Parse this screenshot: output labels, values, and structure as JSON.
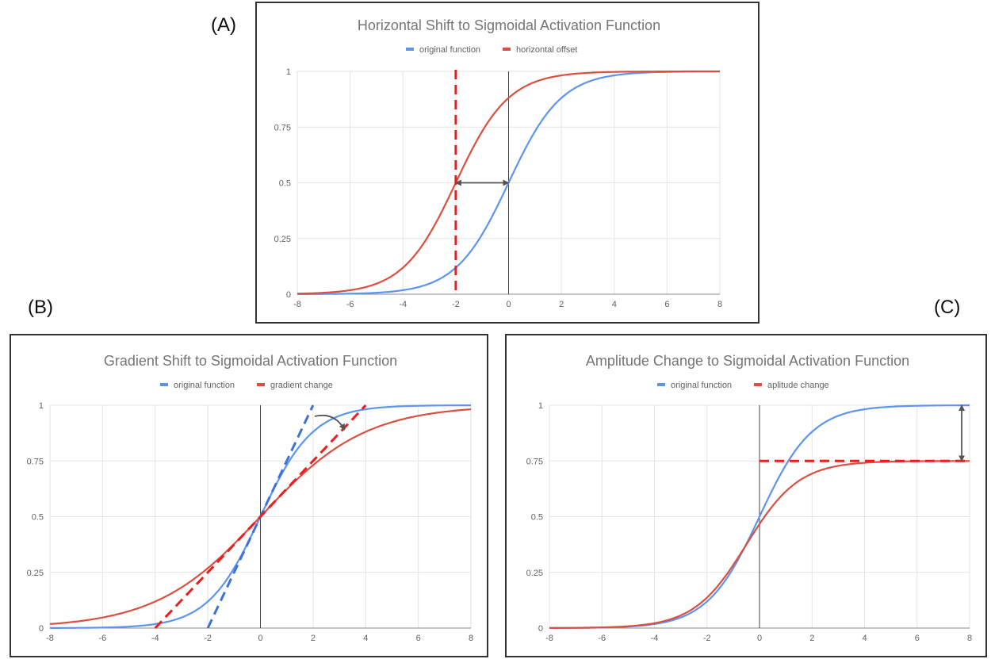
{
  "panel_labels": [
    "(A)",
    "(B)",
    "(C)"
  ],
  "colors": {
    "original": "#5b95f0",
    "modified": "#db4f3f",
    "dashed_red": "#ee1c1c",
    "dashed_blue": "#3d72d6",
    "arrow": "#555555",
    "grid": "#e3e3e3",
    "zero_axis": "#444444"
  },
  "chart_data": [
    {
      "type": "line",
      "title": "Horizontal Shift to Sigmoidal Activation Function",
      "xlim": [
        -8,
        8
      ],
      "ylim": [
        0,
        1
      ],
      "x_ticks": [
        "-8",
        "-6",
        "-4",
        "-2",
        "0",
        "2",
        "4",
        "6",
        "8"
      ],
      "y_ticks": [
        "0",
        "0.25",
        "0.5",
        "0.75",
        "1"
      ],
      "grid": true,
      "legend_position": "top",
      "series": [
        {
          "name": "original function",
          "x": [
            -8,
            -7,
            -6,
            -5,
            -4,
            -3,
            -2,
            -1,
            0,
            1,
            2,
            3,
            4,
            5,
            6,
            7,
            8
          ],
          "y": [
            0.0003,
            0.0009,
            0.0025,
            0.0067,
            0.018,
            0.047,
            0.119,
            0.269,
            0.5,
            0.731,
            0.881,
            0.953,
            0.982,
            0.993,
            0.998,
            0.999,
            1.0
          ]
        },
        {
          "name": "horizontal offset",
          "x": [
            -8,
            -7,
            -6,
            -5,
            -4,
            -3,
            -2,
            -1,
            0,
            1,
            2,
            3,
            4,
            5,
            6,
            7,
            8
          ],
          "y": [
            0.0025,
            0.0067,
            0.018,
            0.047,
            0.119,
            0.269,
            0.5,
            0.731,
            0.881,
            0.953,
            0.982,
            0.993,
            0.998,
            0.999,
            1.0,
            1.0,
            1.0
          ]
        }
      ],
      "annotations": [
        {
          "type": "vline",
          "x": -2,
          "style": "dashed-red"
        },
        {
          "type": "double-arrow",
          "from": [
            -2,
            0.5
          ],
          "to": [
            0,
            0.5
          ]
        }
      ]
    },
    {
      "type": "line",
      "title": "Gradient Shift to Sigmoidal Activation Function",
      "xlim": [
        -8,
        8
      ],
      "ylim": [
        0,
        1
      ],
      "x_ticks": [
        "-8",
        "-6",
        "-4",
        "-2",
        "0",
        "2",
        "4",
        "6",
        "8"
      ],
      "y_ticks": [
        "0",
        "0.25",
        "0.5",
        "0.75",
        "1"
      ],
      "grid": true,
      "legend_position": "top",
      "series": [
        {
          "name": "original function",
          "x": [
            -8,
            -7,
            -6,
            -5,
            -4,
            -3,
            -2,
            -1,
            0,
            1,
            2,
            3,
            4,
            5,
            6,
            7,
            8
          ],
          "y": [
            0.0003,
            0.0009,
            0.0025,
            0.0067,
            0.018,
            0.047,
            0.119,
            0.269,
            0.5,
            0.731,
            0.881,
            0.953,
            0.982,
            0.993,
            0.998,
            0.999,
            1.0
          ]
        },
        {
          "name": "gradient change",
          "x": [
            -8,
            -7,
            -6,
            -5,
            -4,
            -3,
            -2,
            -1,
            0,
            1,
            2,
            3,
            4,
            5,
            6,
            7,
            8
          ],
          "y": [
            0.018,
            0.029,
            0.047,
            0.076,
            0.119,
            0.182,
            0.269,
            0.378,
            0.5,
            0.622,
            0.731,
            0.818,
            0.881,
            0.924,
            0.953,
            0.971,
            0.982
          ]
        }
      ],
      "annotations": [
        {
          "type": "tangent",
          "from": [
            -2,
            0
          ],
          "to": [
            2,
            1
          ],
          "style": "dashed-blue"
        },
        {
          "type": "tangent",
          "from": [
            -4,
            0
          ],
          "to": [
            4,
            1
          ],
          "style": "dashed-red"
        },
        {
          "type": "curved-arrow",
          "from": [
            2,
            0.95
          ],
          "to": [
            3.2,
            0.89
          ]
        }
      ]
    },
    {
      "type": "line",
      "title": "Amplitude Change to Sigmoidal Activation Function",
      "xlim": [
        -8,
        8
      ],
      "ylim": [
        0,
        1
      ],
      "x_ticks": [
        "-8",
        "-6",
        "-4",
        "-2",
        "0",
        "2",
        "4",
        "6",
        "8"
      ],
      "y_ticks": [
        "0",
        "0.25",
        "0.5",
        "0.75",
        "1"
      ],
      "grid": true,
      "legend_position": "top",
      "series": [
        {
          "name": "original function",
          "x": [
            -8,
            -7,
            -6,
            -5,
            -4,
            -3,
            -2,
            -1,
            0,
            1,
            2,
            3,
            4,
            5,
            6,
            7,
            8
          ],
          "y": [
            0.0003,
            0.0009,
            0.0025,
            0.0067,
            0.018,
            0.047,
            0.119,
            0.269,
            0.5,
            0.731,
            0.881,
            0.953,
            0.982,
            0.993,
            0.998,
            0.999,
            1.0
          ]
        },
        {
          "name": "aplitude change",
          "x": [
            -8,
            -7,
            -6,
            -5,
            -4,
            -3,
            -2,
            -1,
            0,
            1,
            2,
            3,
            4,
            5,
            6,
            7,
            8
          ],
          "y": [
            0.0002,
            0.0007,
            0.0019,
            0.005,
            0.0135,
            0.035,
            0.089,
            0.202,
            0.375,
            0.548,
            0.661,
            0.715,
            0.737,
            0.745,
            0.748,
            0.749,
            0.75
          ]
        }
      ],
      "annotations": [
        {
          "type": "hline",
          "y": 0.75,
          "x_from": 0,
          "x_to": 8,
          "style": "dashed-red"
        },
        {
          "type": "double-arrow",
          "from": [
            7.7,
            1
          ],
          "to": [
            7.7,
            0.75
          ]
        }
      ]
    }
  ]
}
